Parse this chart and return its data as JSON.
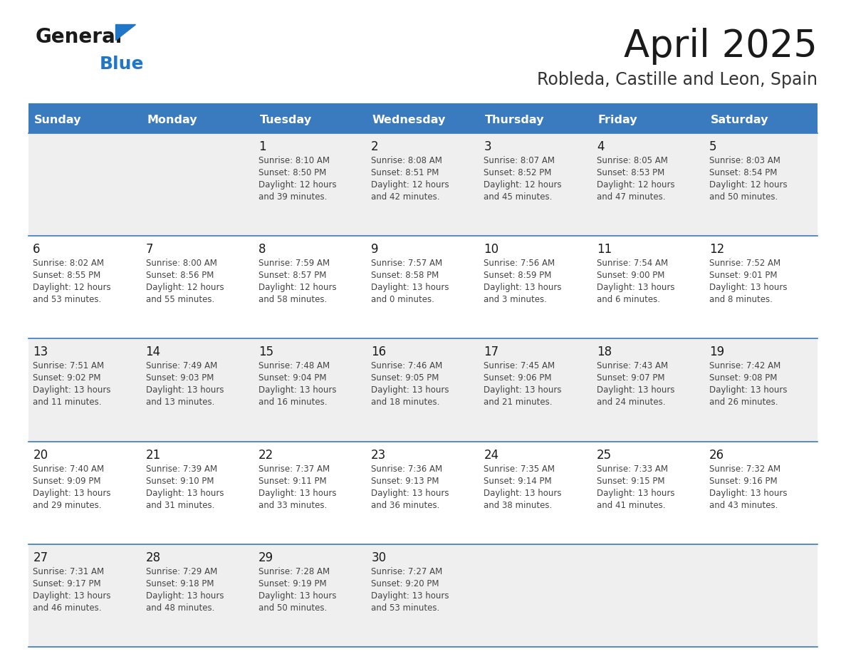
{
  "title": "April 2025",
  "subtitle": "Robleda, Castille and Leon, Spain",
  "header_color": "#3a7abf",
  "header_text_color": "#ffffff",
  "cell_bg_even": "#efefef",
  "cell_bg_odd": "#ffffff",
  "day_headers": [
    "Sunday",
    "Monday",
    "Tuesday",
    "Wednesday",
    "Thursday",
    "Friday",
    "Saturday"
  ],
  "title_color": "#1a1a1a",
  "subtitle_color": "#333333",
  "info_color": "#444444",
  "line_color": "#3a7abf",
  "days": [
    {
      "day": null,
      "info": null
    },
    {
      "day": null,
      "info": null
    },
    {
      "day": "1",
      "info": "Sunrise: 8:10 AM\nSunset: 8:50 PM\nDaylight: 12 hours\nand 39 minutes."
    },
    {
      "day": "2",
      "info": "Sunrise: 8:08 AM\nSunset: 8:51 PM\nDaylight: 12 hours\nand 42 minutes."
    },
    {
      "day": "3",
      "info": "Sunrise: 8:07 AM\nSunset: 8:52 PM\nDaylight: 12 hours\nand 45 minutes."
    },
    {
      "day": "4",
      "info": "Sunrise: 8:05 AM\nSunset: 8:53 PM\nDaylight: 12 hours\nand 47 minutes."
    },
    {
      "day": "5",
      "info": "Sunrise: 8:03 AM\nSunset: 8:54 PM\nDaylight: 12 hours\nand 50 minutes."
    },
    {
      "day": "6",
      "info": "Sunrise: 8:02 AM\nSunset: 8:55 PM\nDaylight: 12 hours\nand 53 minutes."
    },
    {
      "day": "7",
      "info": "Sunrise: 8:00 AM\nSunset: 8:56 PM\nDaylight: 12 hours\nand 55 minutes."
    },
    {
      "day": "8",
      "info": "Sunrise: 7:59 AM\nSunset: 8:57 PM\nDaylight: 12 hours\nand 58 minutes."
    },
    {
      "day": "9",
      "info": "Sunrise: 7:57 AM\nSunset: 8:58 PM\nDaylight: 13 hours\nand 0 minutes."
    },
    {
      "day": "10",
      "info": "Sunrise: 7:56 AM\nSunset: 8:59 PM\nDaylight: 13 hours\nand 3 minutes."
    },
    {
      "day": "11",
      "info": "Sunrise: 7:54 AM\nSunset: 9:00 PM\nDaylight: 13 hours\nand 6 minutes."
    },
    {
      "day": "12",
      "info": "Sunrise: 7:52 AM\nSunset: 9:01 PM\nDaylight: 13 hours\nand 8 minutes."
    },
    {
      "day": "13",
      "info": "Sunrise: 7:51 AM\nSunset: 9:02 PM\nDaylight: 13 hours\nand 11 minutes."
    },
    {
      "day": "14",
      "info": "Sunrise: 7:49 AM\nSunset: 9:03 PM\nDaylight: 13 hours\nand 13 minutes."
    },
    {
      "day": "15",
      "info": "Sunrise: 7:48 AM\nSunset: 9:04 PM\nDaylight: 13 hours\nand 16 minutes."
    },
    {
      "day": "16",
      "info": "Sunrise: 7:46 AM\nSunset: 9:05 PM\nDaylight: 13 hours\nand 18 minutes."
    },
    {
      "day": "17",
      "info": "Sunrise: 7:45 AM\nSunset: 9:06 PM\nDaylight: 13 hours\nand 21 minutes."
    },
    {
      "day": "18",
      "info": "Sunrise: 7:43 AM\nSunset: 9:07 PM\nDaylight: 13 hours\nand 24 minutes."
    },
    {
      "day": "19",
      "info": "Sunrise: 7:42 AM\nSunset: 9:08 PM\nDaylight: 13 hours\nand 26 minutes."
    },
    {
      "day": "20",
      "info": "Sunrise: 7:40 AM\nSunset: 9:09 PM\nDaylight: 13 hours\nand 29 minutes."
    },
    {
      "day": "21",
      "info": "Sunrise: 7:39 AM\nSunset: 9:10 PM\nDaylight: 13 hours\nand 31 minutes."
    },
    {
      "day": "22",
      "info": "Sunrise: 7:37 AM\nSunset: 9:11 PM\nDaylight: 13 hours\nand 33 minutes."
    },
    {
      "day": "23",
      "info": "Sunrise: 7:36 AM\nSunset: 9:13 PM\nDaylight: 13 hours\nand 36 minutes."
    },
    {
      "day": "24",
      "info": "Sunrise: 7:35 AM\nSunset: 9:14 PM\nDaylight: 13 hours\nand 38 minutes."
    },
    {
      "day": "25",
      "info": "Sunrise: 7:33 AM\nSunset: 9:15 PM\nDaylight: 13 hours\nand 41 minutes."
    },
    {
      "day": "26",
      "info": "Sunrise: 7:32 AM\nSunset: 9:16 PM\nDaylight: 13 hours\nand 43 minutes."
    },
    {
      "day": "27",
      "info": "Sunrise: 7:31 AM\nSunset: 9:17 PM\nDaylight: 13 hours\nand 46 minutes."
    },
    {
      "day": "28",
      "info": "Sunrise: 7:29 AM\nSunset: 9:18 PM\nDaylight: 13 hours\nand 48 minutes."
    },
    {
      "day": "29",
      "info": "Sunrise: 7:28 AM\nSunset: 9:19 PM\nDaylight: 13 hours\nand 50 minutes."
    },
    {
      "day": "30",
      "info": "Sunrise: 7:27 AM\nSunset: 9:20 PM\nDaylight: 13 hours\nand 53 minutes."
    },
    {
      "day": null,
      "info": null
    },
    {
      "day": null,
      "info": null
    },
    {
      "day": null,
      "info": null
    }
  ],
  "logo_general_color": "#1a1a1a",
  "logo_blue_color": "#2176c7",
  "logo_triangle_color": "#2176c7"
}
